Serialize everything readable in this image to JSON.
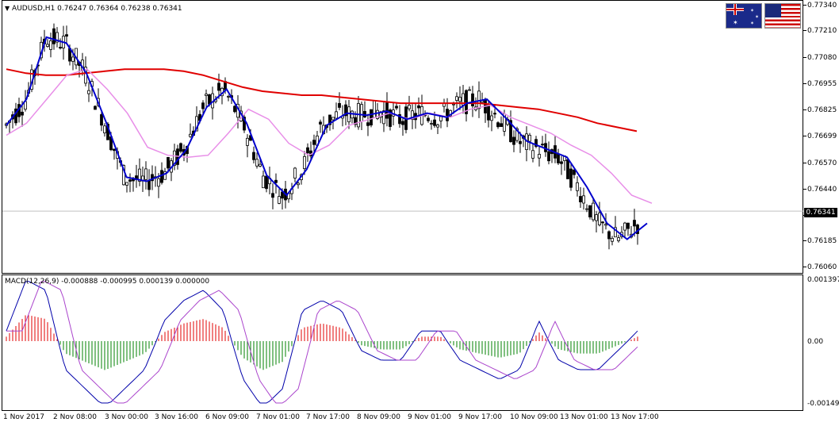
{
  "header": {
    "symbol": "AUDUSD,H1",
    "ohlc": "0.76247 0.76364 0.76238 0.76341",
    "collapse_arrow": "triangle-down-icon"
  },
  "macd": {
    "label": "MACD(12,26,9) -0.000888 -0.000995 0.000139 0.000000"
  },
  "flags": [
    "australia-flag-icon",
    "usa-flag-icon"
  ],
  "price_axis": [
    "0.77340",
    "0.77210",
    "0.77080",
    "0.76955",
    "0.76825",
    "0.76699",
    "0.76570",
    "0.76440",
    "0.76315",
    "0.76185",
    "0.76060"
  ],
  "current_price": "0.76341",
  "macd_axis": [
    "0.001397",
    "0.00",
    "-0.001494"
  ],
  "time_axis": [
    "1 Nov 2017",
    "2 Nov 08:00",
    "3 Nov 00:00",
    "3 Nov 16:00",
    "6 Nov 09:00",
    "7 Nov 01:00",
    "7 Nov 17:00",
    "8 Nov 09:00",
    "9 Nov 01:00",
    "9 Nov 17:00",
    "10 Nov 09:00",
    "13 Nov 01:00",
    "13 Nov 17:00"
  ],
  "colors": {
    "ma_slow": "#e00000",
    "ma_mid": "#e88ee8",
    "ma_fast": "#0000cc",
    "candle": "#000000",
    "hist_pos": "#e00000",
    "hist_neg": "#008000",
    "macd_line": "#0000aa",
    "signal_line": "#aa44cc"
  },
  "chart_data": [
    {
      "type": "line",
      "title": "AUDUSD,H1",
      "ylim": [
        0.7604,
        0.7738
      ],
      "series": [
        {
          "values": [
            0.7705,
            0.7703,
            0.7702,
            0.7702,
            0.7703,
            0.7704,
            0.7705,
            0.7705,
            0.7705,
            0.7704,
            0.7702,
            0.7699,
            0.7696,
            0.7694,
            0.7693,
            0.7692,
            0.7692,
            0.7691,
            0.769,
            0.7689,
            0.7688,
            0.7688,
            0.7688,
            0.7688,
            0.7688,
            0.7687,
            0.7686,
            0.7685,
            0.7683,
            0.7681,
            0.7678,
            0.7676,
            0.7674
          ]
        },
        {
          "values": [
            0.7672,
            0.7678,
            0.769,
            0.7702,
            0.7705,
            0.7695,
            0.7683,
            0.7666,
            0.7662,
            0.7661,
            0.7662,
            0.7673,
            0.7685,
            0.768,
            0.7668,
            0.7662,
            0.7667,
            0.7677,
            0.768,
            0.7683,
            0.768,
            0.7683,
            0.7681,
            0.7685,
            0.7687,
            0.7681,
            0.7677,
            0.7673,
            0.7667,
            0.7662,
            0.7653,
            0.7642,
            0.7638
          ]
        },
        {
          "values": [
            0.7677,
            0.769,
            0.7721,
            0.7718,
            0.7703,
            0.7678,
            0.7651,
            0.7649,
            0.7653,
            0.7665,
            0.7686,
            0.7695,
            0.7678,
            0.7652,
            0.7642,
            0.7655,
            0.7677,
            0.7683,
            0.7682,
            0.7684,
            0.768,
            0.7683,
            0.7681,
            0.7688,
            0.769,
            0.768,
            0.7669,
            0.7665,
            0.7661,
            0.7646,
            0.7628,
            0.762,
            0.7628
          ]
        }
      ]
    },
    {
      "type": "bar",
      "title": "MACD(12,26,9)",
      "ylim": [
        -0.001494,
        0.001397
      ],
      "values": [
        0.0001,
        0.0006,
        0.0005,
        -0.0003,
        -0.0005,
        -0.0007,
        -0.0005,
        -0.0003,
        0.0002,
        0.0004,
        0.0005,
        0.0003,
        -0.0004,
        -0.0007,
        -0.0005,
        0.0003,
        0.0004,
        0.0003,
        -0.0001,
        -0.0002,
        -0.0002,
        0.0001,
        0.0001,
        -0.0002,
        -0.0003,
        -0.0004,
        -0.0003,
        0.0002,
        -0.0002,
        -0.0003,
        -0.0003,
        -0.0001,
        0.0001
      ]
    }
  ]
}
